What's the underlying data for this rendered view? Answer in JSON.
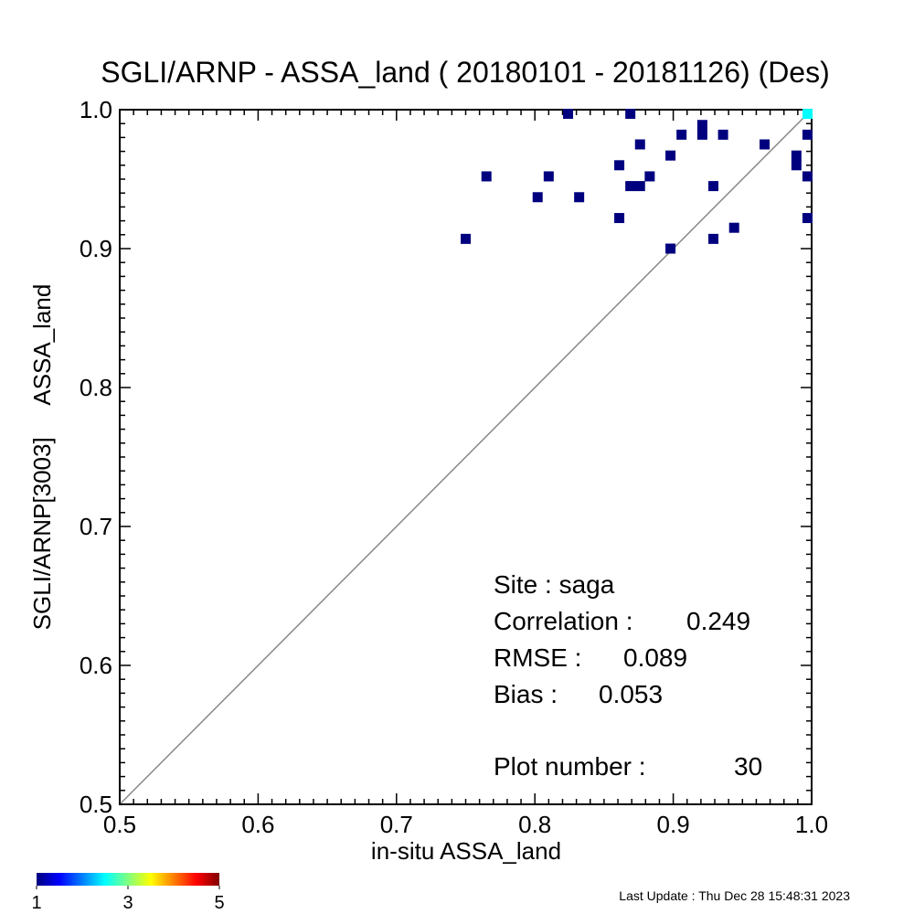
{
  "chart_data": {
    "type": "scatter",
    "title": "SGLI/ARNP - ASSA_land ( 20180101 - 20181126) (Des)",
    "xlabel": "in-situ ASSA_land",
    "ylabel": "SGLI/ARNP[3003]     ASSA_land",
    "xlim": [
      0.5,
      1.0
    ],
    "ylim": [
      0.5,
      1.0
    ],
    "xticks": [
      "0.5",
      "0.6",
      "0.7",
      "0.8",
      "0.9",
      "1.0"
    ],
    "yticks": [
      "0.5",
      "0.6",
      "0.7",
      "0.8",
      "0.9",
      "1.0"
    ],
    "one_to_one_line": true,
    "grid": false,
    "points": [
      {
        "x": 0.75,
        "y": 0.907,
        "count": 1
      },
      {
        "x": 0.765,
        "y": 0.952,
        "count": 1
      },
      {
        "x": 0.802,
        "y": 0.937,
        "count": 1
      },
      {
        "x": 0.81,
        "y": 0.952,
        "count": 1
      },
      {
        "x": 0.824,
        "y": 0.997,
        "count": 1
      },
      {
        "x": 0.832,
        "y": 0.937,
        "count": 1
      },
      {
        "x": 0.861,
        "y": 0.96,
        "count": 1
      },
      {
        "x": 0.861,
        "y": 0.922,
        "count": 1
      },
      {
        "x": 0.869,
        "y": 0.997,
        "count": 1
      },
      {
        "x": 0.869,
        "y": 0.945,
        "count": 1
      },
      {
        "x": 0.876,
        "y": 0.945,
        "count": 1
      },
      {
        "x": 0.876,
        "y": 0.975,
        "count": 1
      },
      {
        "x": 0.883,
        "y": 0.952,
        "count": 1
      },
      {
        "x": 0.898,
        "y": 0.967,
        "count": 1
      },
      {
        "x": 0.898,
        "y": 0.9,
        "count": 1
      },
      {
        "x": 0.906,
        "y": 0.982,
        "count": 1
      },
      {
        "x": 0.921,
        "y": 0.982,
        "count": 1
      },
      {
        "x": 0.921,
        "y": 0.989,
        "count": 1
      },
      {
        "x": 0.929,
        "y": 0.945,
        "count": 1
      },
      {
        "x": 0.929,
        "y": 0.907,
        "count": 1
      },
      {
        "x": 0.936,
        "y": 0.982,
        "count": 1
      },
      {
        "x": 0.944,
        "y": 0.915,
        "count": 1
      },
      {
        "x": 0.966,
        "y": 0.975,
        "count": 1
      },
      {
        "x": 0.989,
        "y": 0.967,
        "count": 1
      },
      {
        "x": 0.989,
        "y": 0.96,
        "count": 1
      },
      {
        "x": 0.997,
        "y": 0.982,
        "count": 1
      },
      {
        "x": 0.997,
        "y": 0.952,
        "count": 1
      },
      {
        "x": 0.997,
        "y": 0.922,
        "count": 1
      },
      {
        "x": 0.997,
        "y": 0.997,
        "count": 2
      }
    ],
    "stats": {
      "site_label": "Site : saga",
      "correlation_label": "Correlation :",
      "correlation_value": "0.249",
      "rmse_label": "RMSE :",
      "rmse_value": "0.089",
      "bias_label": "Bias :",
      "bias_value": "0.053",
      "plot_number_label": "Plot number :",
      "plot_number_value": "30"
    },
    "colorbar": {
      "min": 1,
      "max": 5,
      "tick_labels": [
        "1",
        "3",
        "5"
      ],
      "colormap": [
        "#00007f",
        "#0000ff",
        "#007fff",
        "#00ffff",
        "#7fff7f",
        "#ffff00",
        "#ff7f00",
        "#ff0000",
        "#7f0000"
      ]
    },
    "colors": {
      "axis": "#000000",
      "diagonal": "#888888",
      "point_default": "#00007f"
    }
  },
  "footer": {
    "last_update": "Last Update : Thu Dec 28 15:48:31 2023"
  }
}
